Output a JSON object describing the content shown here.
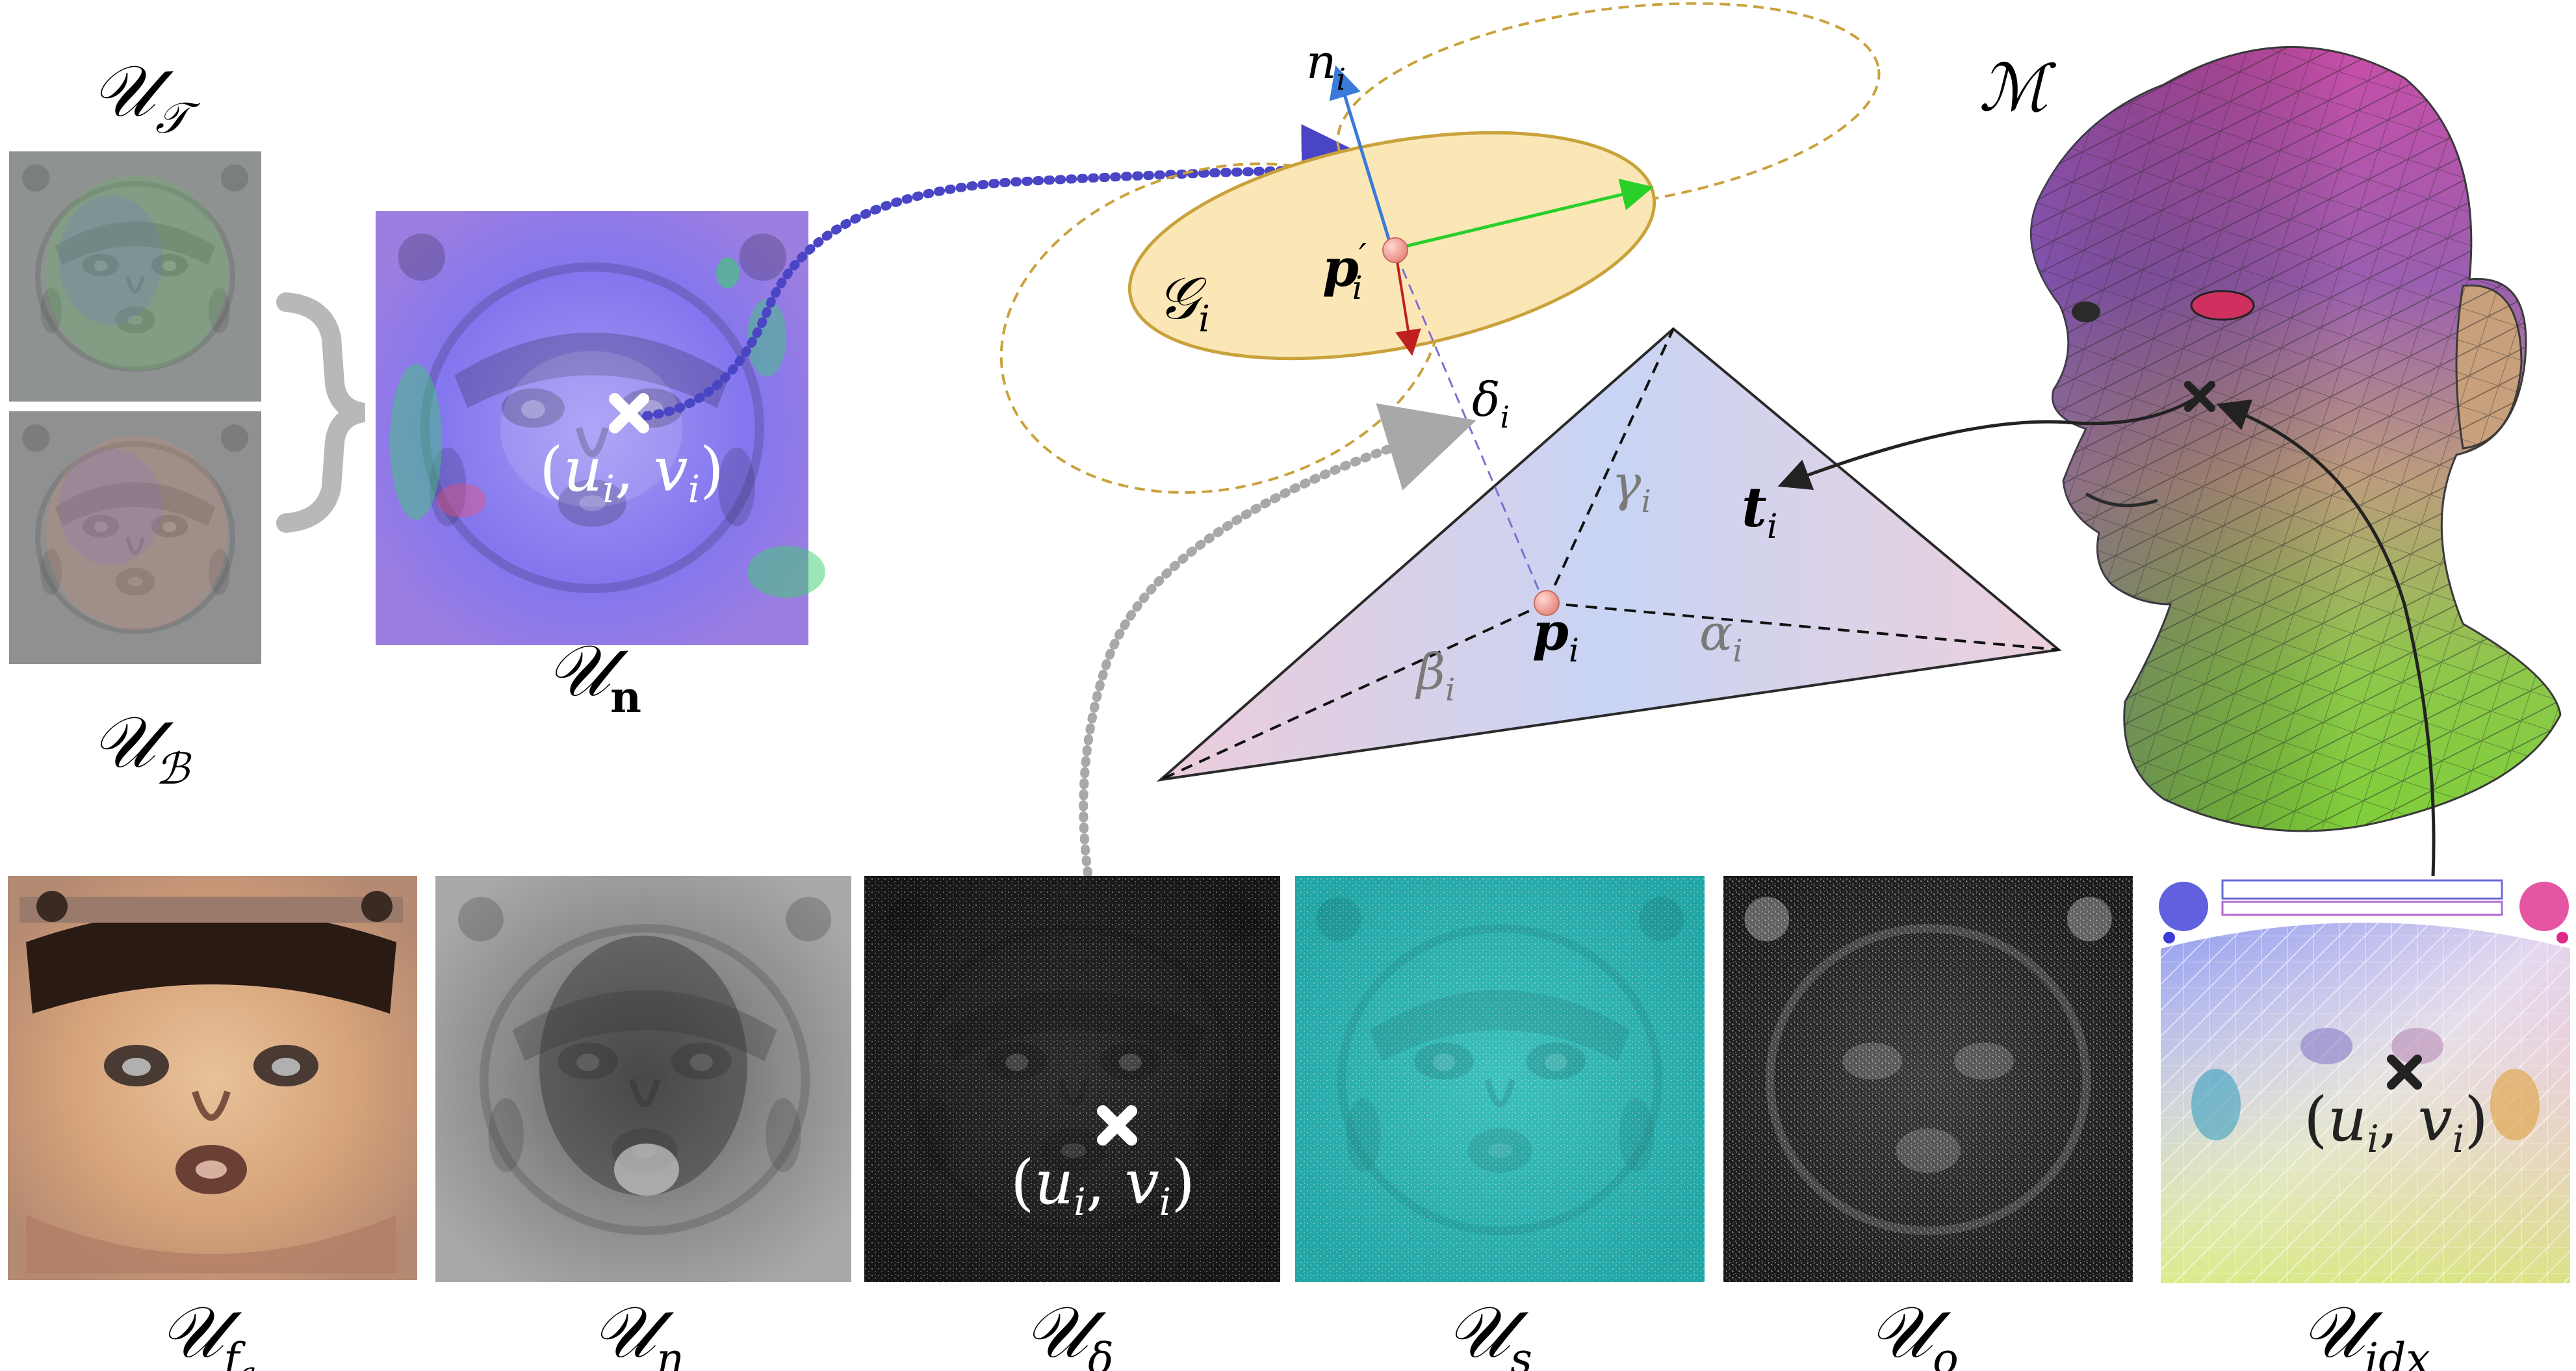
{
  "labels": {
    "u_t": {
      "main": "𝒰",
      "sub": "𝒯"
    },
    "u_b": {
      "main": "𝒰",
      "sub": "ℬ"
    },
    "u_n": {
      "main": "𝒰",
      "sub": "n"
    },
    "u_fa": {
      "main": "𝒰",
      "sub": "f",
      "subsub": "a"
    },
    "u_eta": {
      "main": "𝒰",
      "sub": "η"
    },
    "u_delta": {
      "main": "𝒰",
      "sub": "δ"
    },
    "u_s": {
      "main": "𝒰",
      "sub": "s"
    },
    "u_o": {
      "main": "𝒰",
      "sub": "o"
    },
    "u_idx": {
      "main": "𝒰",
      "sub": "idx"
    },
    "mesh": "ℳ",
    "gaussian": {
      "main": "𝒢",
      "sub": "i"
    },
    "normal": {
      "main": "n",
      "sub": "i"
    },
    "p_prime": {
      "main": "p",
      "prime": "′",
      "sub": "i"
    },
    "p": {
      "main": "p",
      "sub": "i"
    },
    "delta": {
      "main": "δ",
      "sub": "i"
    },
    "gamma": {
      "main": "γ",
      "sub": "i"
    },
    "alpha": {
      "main": "α",
      "sub": "i"
    },
    "beta": {
      "main": "β",
      "sub": "i"
    },
    "t": {
      "main": "t",
      "sub": "i"
    },
    "uv_open": "(",
    "uv_u": "u",
    "uv_sub": "i",
    "uv_comma": ", ",
    "uv_v": "v",
    "uv_close": ")"
  },
  "colors": {
    "normal_map": "#8a7ef0",
    "albedo": "#b08060",
    "eta": "#9a9a9a",
    "delta_map": "#1a1a1a",
    "s_map": "#2ab0b0",
    "o_map": "#202020",
    "gaussian_fill": "#fbe7b6",
    "gaussian_stroke": "#c9a23c",
    "triangle_a": "#c9d4f4",
    "triangle_b": "#eccfda",
    "arrow_blue": "#4a45c4",
    "arrow_gray": "#a0a0a0",
    "mesh_top": "#c74da8",
    "mesh_bottom": "#8fd13d"
  }
}
